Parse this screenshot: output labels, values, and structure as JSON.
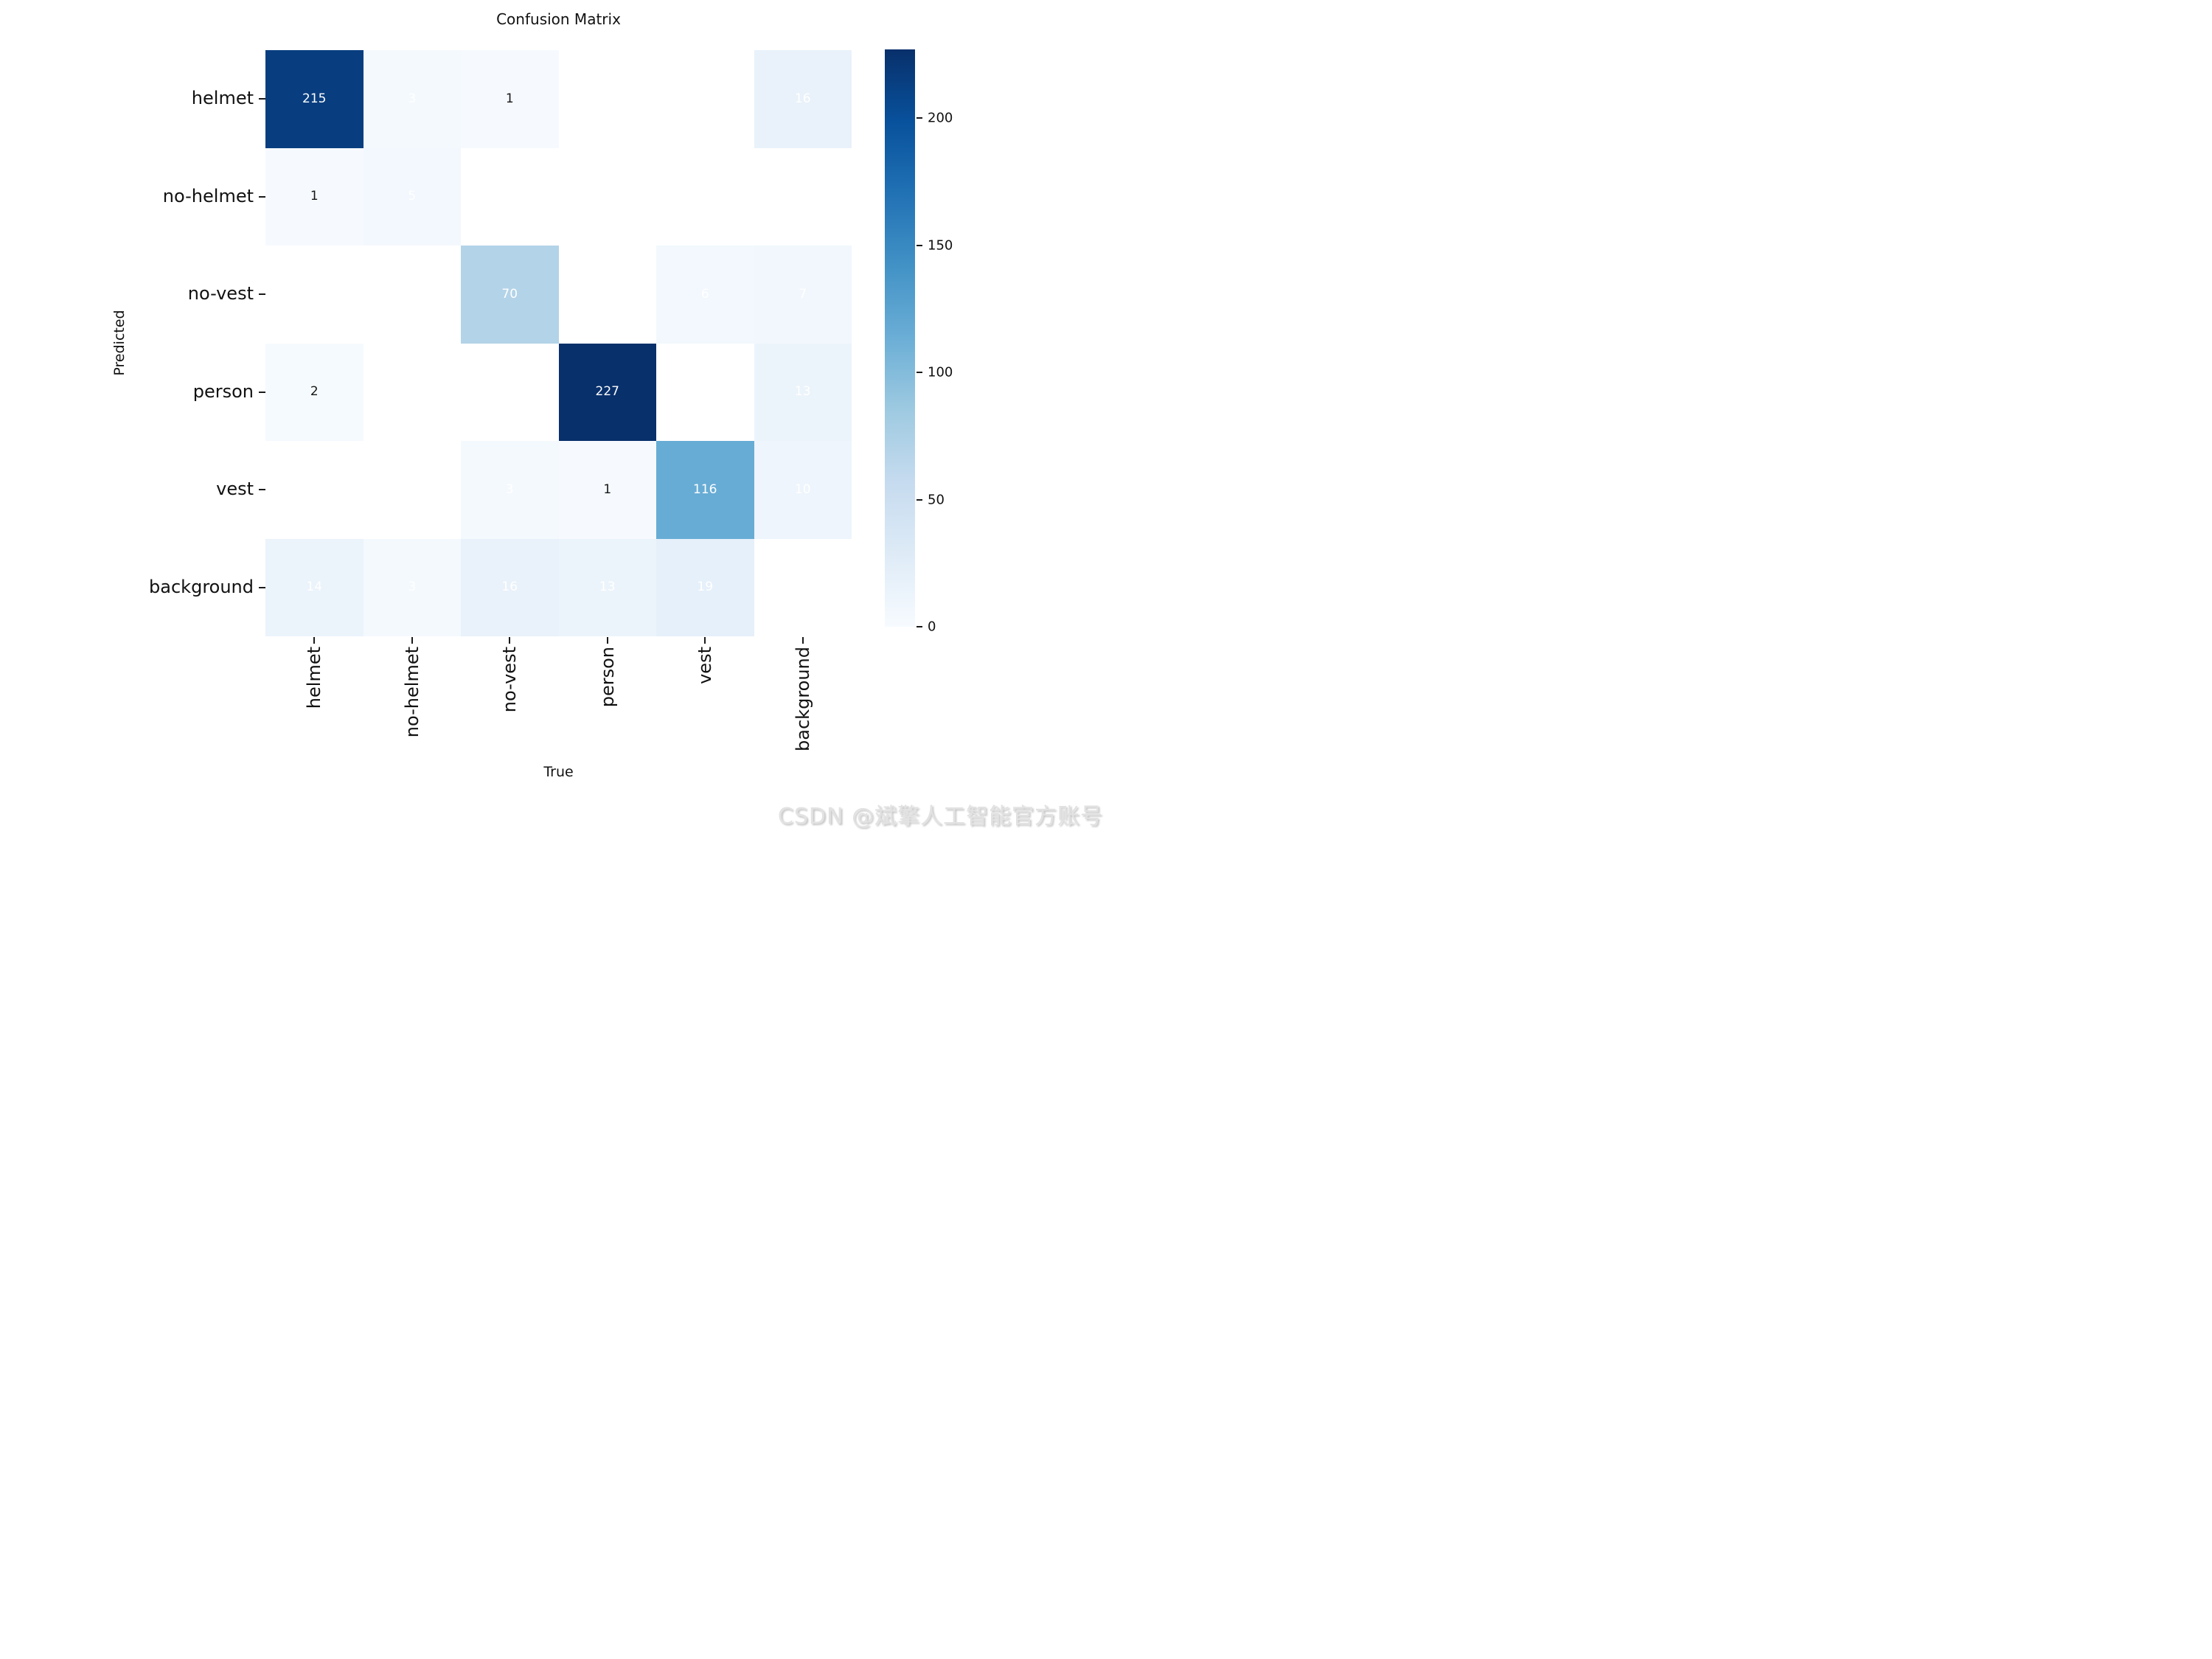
{
  "title": "Confusion Matrix",
  "x_axis": {
    "label": "True",
    "categories": [
      "helmet",
      "no-helmet",
      "no-vest",
      "person",
      "vest",
      "background"
    ]
  },
  "y_axis": {
    "label": "Predicted",
    "categories": [
      "helmet",
      "no-helmet",
      "no-vest",
      "person",
      "vest",
      "background"
    ]
  },
  "chart_data": {
    "type": "heatmap",
    "title": "Confusion Matrix",
    "xlabel": "True",
    "ylabel": "Predicted",
    "x_categories": [
      "helmet",
      "no-helmet",
      "no-vest",
      "person",
      "vest",
      "background"
    ],
    "y_categories": [
      "helmet",
      "no-helmet",
      "no-vest",
      "person",
      "vest",
      "background"
    ],
    "matrix": [
      [
        215,
        3,
        1,
        null,
        null,
        16
      ],
      [
        1,
        5,
        null,
        null,
        null,
        null
      ],
      [
        null,
        null,
        70,
        null,
        6,
        7
      ],
      [
        2,
        null,
        null,
        227,
        null,
        13
      ],
      [
        null,
        null,
        3,
        1,
        116,
        10
      ],
      [
        14,
        3,
        16,
        13,
        19,
        null
      ]
    ],
    "vmin": 0,
    "vmax": 227,
    "colormap": "Blues",
    "empty_cells_rendered_blank": true,
    "annotation_white_text_min_value": 3,
    "colorbar": {
      "ticks": [
        0,
        50,
        100,
        150,
        200
      ],
      "position": "right"
    },
    "legend_position": "none",
    "grid": false
  },
  "colors": {
    "colormap_stops": [
      "#f7fbff",
      "#deebf7",
      "#c6dbef",
      "#9ecae1",
      "#6baed6",
      "#4292c6",
      "#2171b5",
      "#08519c",
      "#08306b"
    ],
    "empty_cell": "#ffffff",
    "annot_light": "#ffffff",
    "annot_dark": "#151515",
    "axis_text": "#111111",
    "background": "#ffffff"
  },
  "watermark": "CSDN @斌擎人工智能官方账号"
}
